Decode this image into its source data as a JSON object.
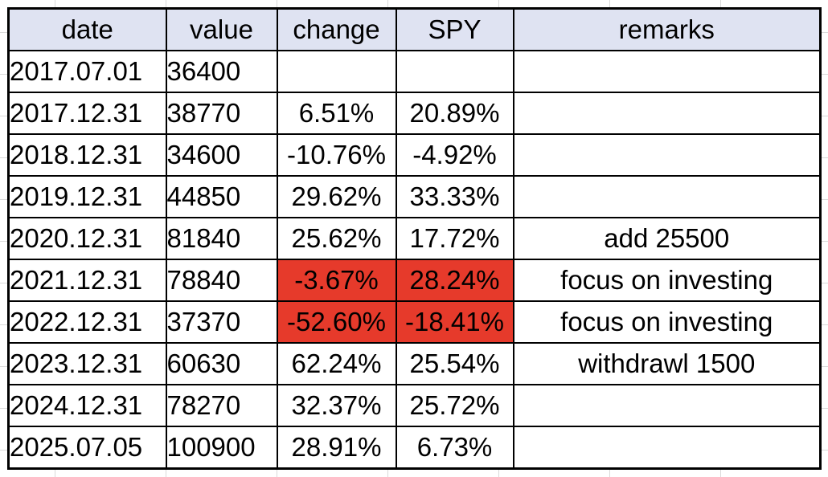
{
  "colors": {
    "header_fill": "#dfe3f2",
    "highlight_fill": "#e63a2b",
    "border": "#000000"
  },
  "table": {
    "headers": [
      "date",
      "value",
      "change",
      "SPY",
      "remarks"
    ],
    "rows": [
      {
        "date": "2017.07.01",
        "value": "36400",
        "change": "",
        "spy": "",
        "remarks": ""
      },
      {
        "date": "2017.12.31",
        "value": "38770",
        "change": "6.51%",
        "spy": "20.89%",
        "remarks": ""
      },
      {
        "date": "2018.12.31",
        "value": "34600",
        "change": "-10.76%",
        "spy": "-4.92%",
        "remarks": ""
      },
      {
        "date": "2019.12.31",
        "value": "44850",
        "change": "29.62%",
        "spy": "33.33%",
        "remarks": ""
      },
      {
        "date": "2020.12.31",
        "value": "81840",
        "change": "25.62%",
        "spy": "17.72%",
        "remarks": "add 25500"
      },
      {
        "date": "2021.12.31",
        "value": "78840",
        "change": "-3.67%",
        "spy": "28.24%",
        "remarks": "focus on investing",
        "highlight": true
      },
      {
        "date": "2022.12.31",
        "value": "37370",
        "change": "-52.60%",
        "spy": "-18.41%",
        "remarks": "focus on investing",
        "highlight": true
      },
      {
        "date": "2023.12.31",
        "value": "60630",
        "change": "62.24%",
        "spy": "25.54%",
        "remarks": "withdrawl 1500"
      },
      {
        "date": "2024.12.31",
        "value": "78270",
        "change": "32.37%",
        "spy": "25.72%",
        "remarks": ""
      },
      {
        "date": "2025.07.05",
        "value": "100900",
        "change": "28.91%",
        "spy": "6.73%",
        "remarks": ""
      }
    ]
  }
}
